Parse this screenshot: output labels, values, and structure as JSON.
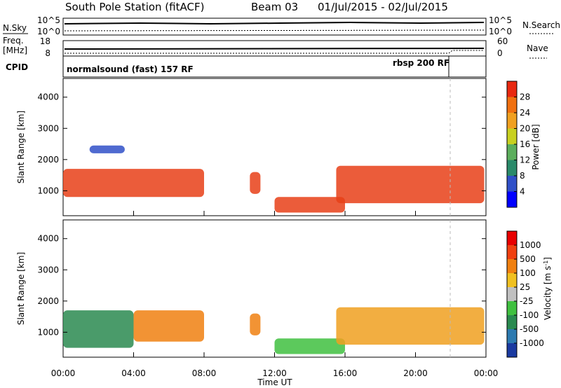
{
  "header": {
    "title": "South Pole Station (fitACF)",
    "beam": "Beam 03",
    "date_range": "01/Jul/2015 - 02/Jul/2015"
  },
  "top_panels": {
    "nsky_label": "N.Sky",
    "nsky_ticks": [
      "10^5",
      "10^0"
    ],
    "nsearch_label": "N.Search",
    "nsearch_ticks": [
      "10^5",
      "10^0"
    ],
    "freq_label": "Freq.",
    "freq_unit": "[MHz]",
    "freq_ticks": [
      "18",
      "8"
    ],
    "nave_label": "Nave",
    "nave_ticks": [
      "60",
      "0"
    ],
    "cpid_label": "CPID",
    "cpid_mode_1": "normalsound (fast) 157 RF",
    "cpid_mode_2": "rbsp 200 RF"
  },
  "chart_data": [
    {
      "type": "heatmap",
      "panel": "power",
      "ylabel": "Slant Range [km]",
      "xlabel": "",
      "ylim": [
        200,
        4600
      ],
      "yticks": [
        "4000",
        "3000",
        "2000",
        "1000"
      ],
      "colorbar_label": "Power [dB]",
      "colorbar_ticks": [
        "28",
        "24",
        "20",
        "16",
        "12",
        "8",
        "4"
      ],
      "colorbar_colors": [
        "#0000ff",
        "#3050c8",
        "#2a8a6a",
        "#5cae5c",
        "#c8d020",
        "#f0a020",
        "#f07010",
        "#e82810"
      ],
      "blobs": [
        {
          "t0": 0.0,
          "t1": 8.0,
          "r0": 800,
          "r1": 1700,
          "color": "#e84018"
        },
        {
          "t0": 1.5,
          "t1": 3.5,
          "r0": 2200,
          "r1": 2450,
          "color": "#3050c8"
        },
        {
          "t0": 10.6,
          "t1": 11.2,
          "r0": 900,
          "r1": 1600,
          "color": "#e84018"
        },
        {
          "t0": 12.0,
          "t1": 16.0,
          "r0": 300,
          "r1": 800,
          "color": "#e84018"
        },
        {
          "t0": 15.5,
          "t1": 23.9,
          "r0": 600,
          "r1": 1800,
          "color": "#e84018"
        }
      ]
    },
    {
      "type": "heatmap",
      "panel": "velocity",
      "ylabel": "Slant Range [km]",
      "xlabel": "Time UT",
      "ylim": [
        200,
        4600
      ],
      "yticks": [
        "4000",
        "3000",
        "2000",
        "1000"
      ],
      "xticks": [
        "00:00",
        "04:00",
        "08:00",
        "12:00",
        "16:00",
        "20:00",
        "00:00"
      ],
      "colorbar_label": "Velocity [m s^-1]",
      "colorbar_ticks": [
        "1000",
        "500",
        "100",
        "25",
        "-25",
        "-100",
        "-500",
        "-1000"
      ],
      "colorbar_colors": [
        "#1a3aa0",
        "#2c7ab0",
        "#2a8a50",
        "#40c040",
        "#c0c0c0",
        "#f0c020",
        "#f08010",
        "#f04010",
        "#e80000"
      ],
      "blobs": [
        {
          "t0": 0.0,
          "t1": 4.0,
          "r0": 500,
          "r1": 1700,
          "color": "#2a8a50"
        },
        {
          "t0": 4.0,
          "t1": 8.0,
          "r0": 700,
          "r1": 1700,
          "color": "#f08010"
        },
        {
          "t0": 10.6,
          "t1": 11.2,
          "r0": 900,
          "r1": 1600,
          "color": "#f08010"
        },
        {
          "t0": 12.0,
          "t1": 16.0,
          "r0": 300,
          "r1": 800,
          "color": "#40c040"
        },
        {
          "t0": 15.5,
          "t1": 23.9,
          "r0": 600,
          "r1": 1800,
          "color": "#f0a020"
        }
      ]
    }
  ]
}
